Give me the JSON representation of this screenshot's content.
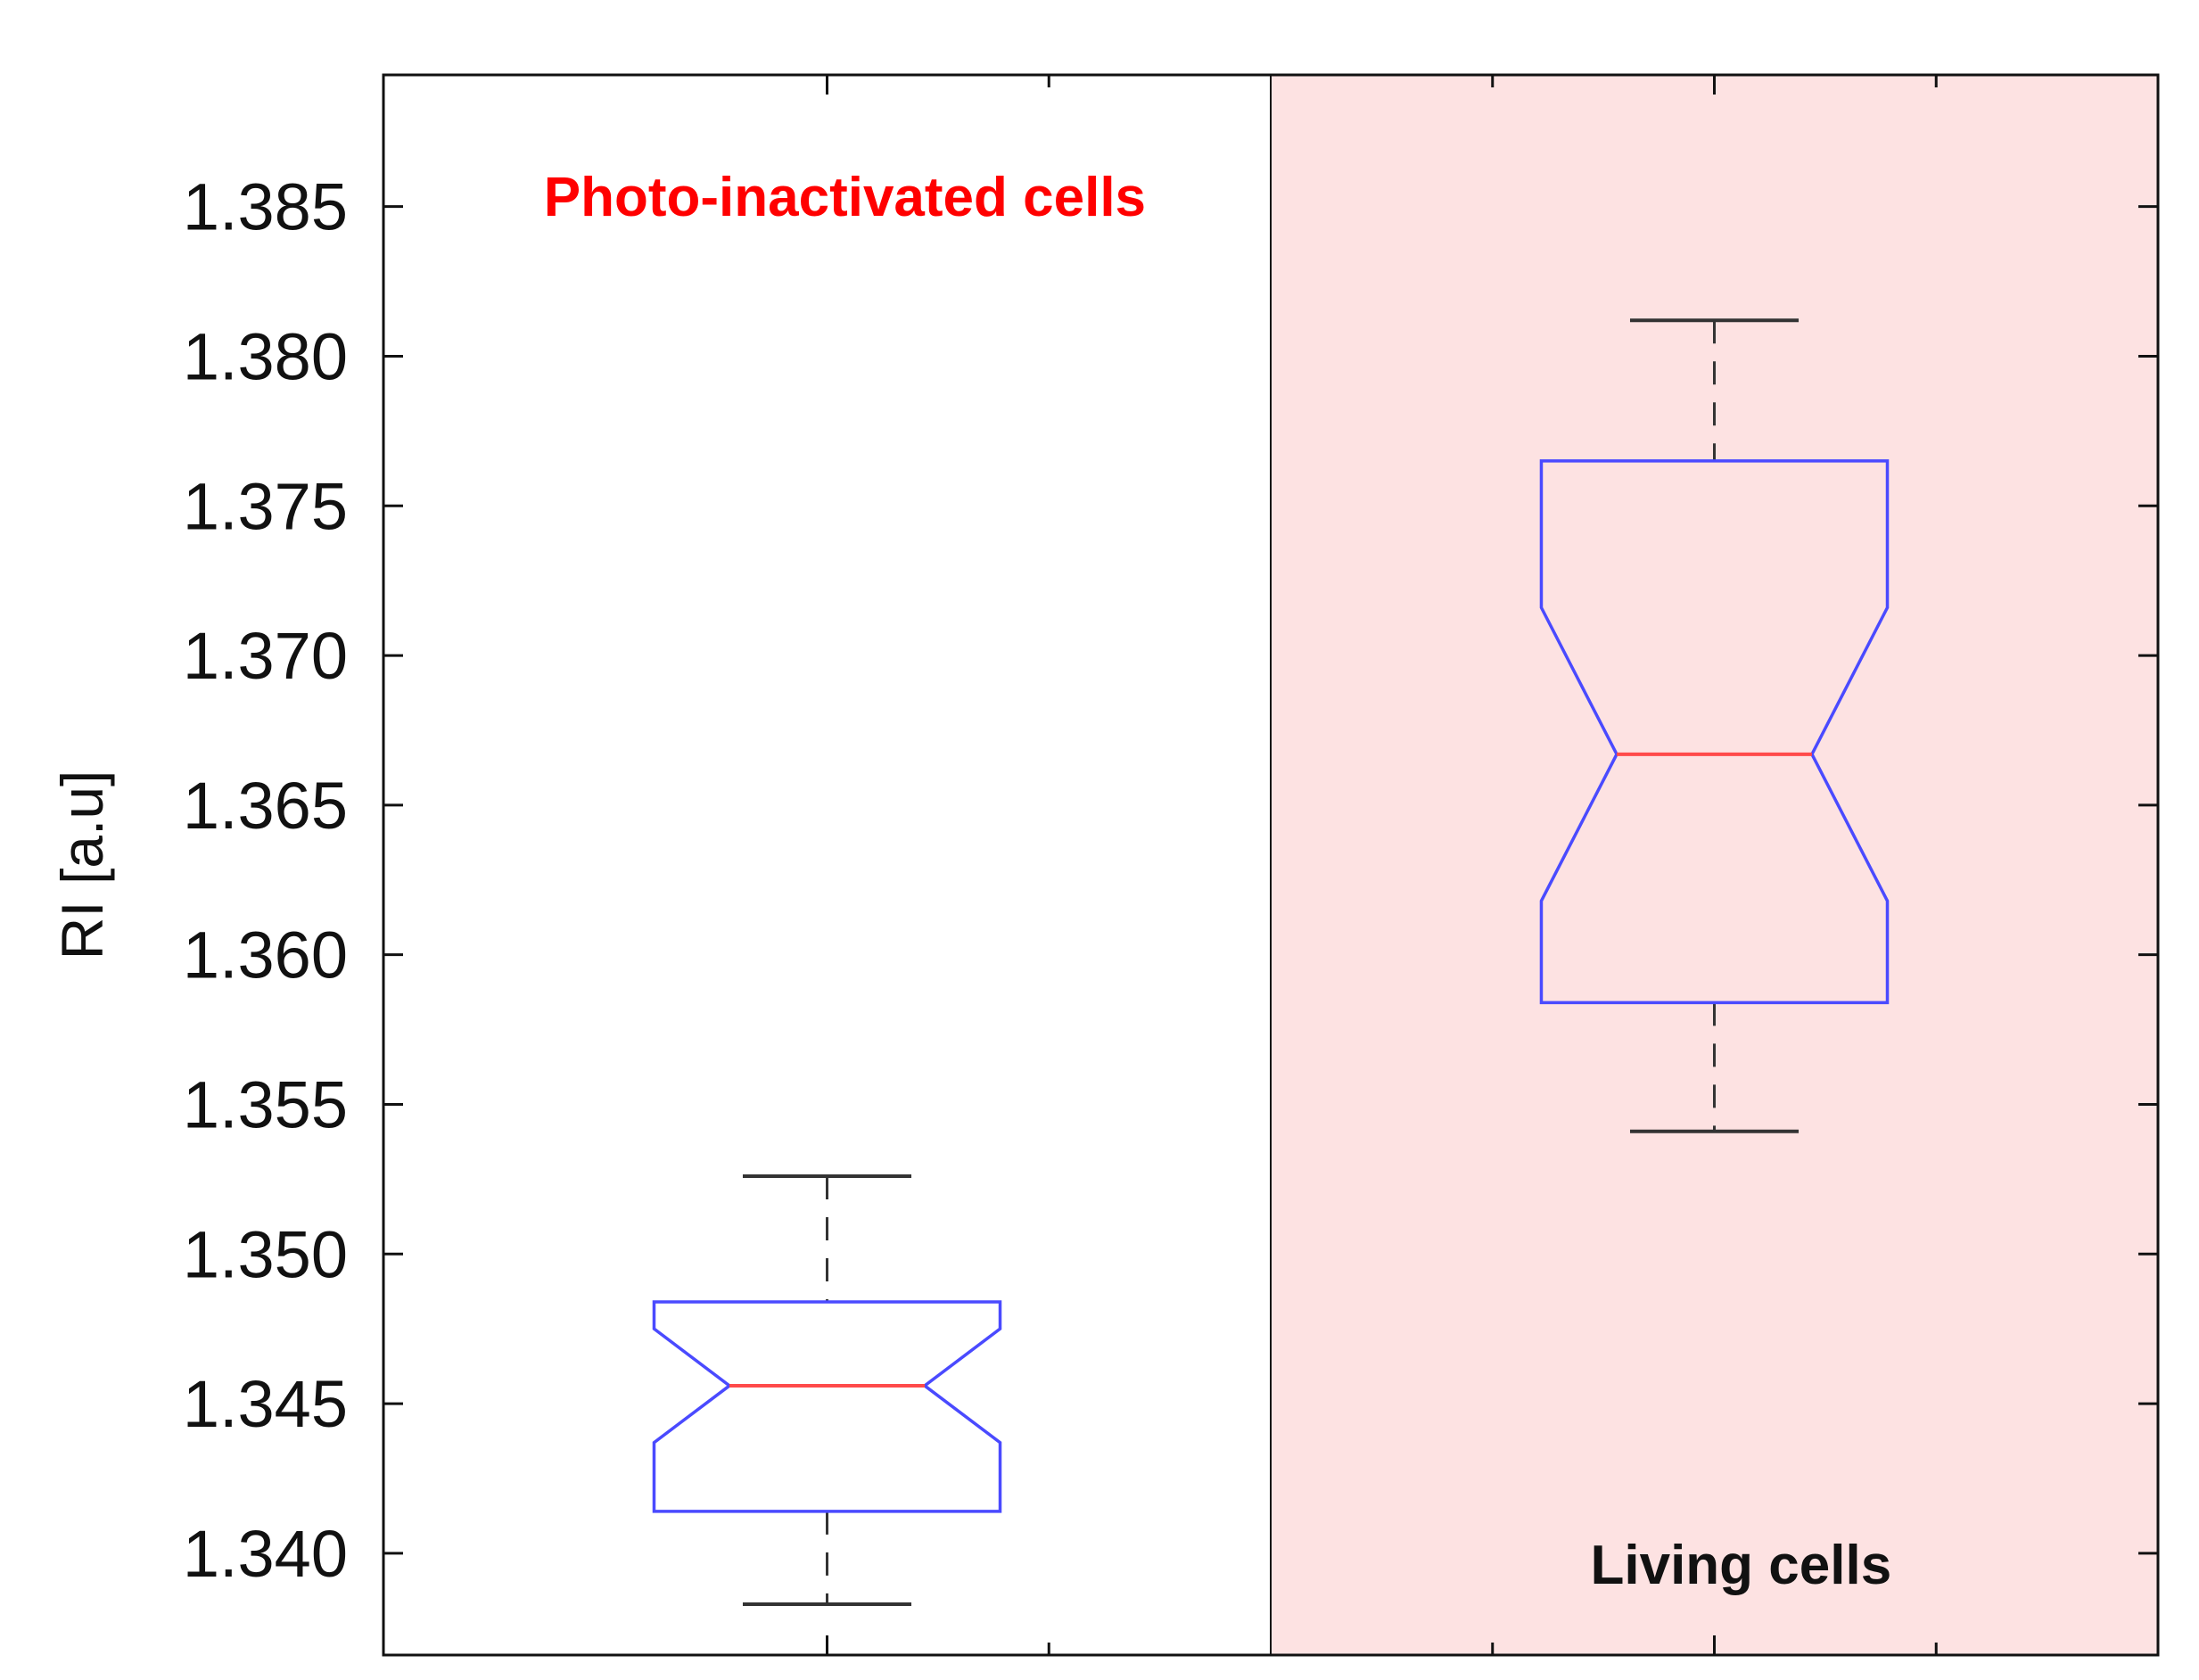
{
  "chart_data": {
    "type": "boxplot",
    "title": "",
    "xlabel": "",
    "ylabel": "RI [a.u]",
    "ylim": [
      1.3366,
      1.3894
    ],
    "yticks": [
      "1.340",
      "1.345",
      "1.350",
      "1.355",
      "1.360",
      "1.365",
      "1.370",
      "1.375",
      "1.380",
      "1.385"
    ],
    "notched": true,
    "grid": false,
    "groups": [
      {
        "annotation": "Photo-inactivated cells",
        "annotation_color": "#ff0000",
        "region_fill": "#ffffff",
        "whisker_low": 1.3383,
        "q1": 1.3414,
        "median": 1.3456,
        "q3": 1.3484,
        "whisker_high": 1.3526,
        "notch_low": 1.3437,
        "notch_high": 1.3475
      },
      {
        "annotation": "Living cells",
        "annotation_color": "#111111",
        "region_fill": "#fde2e2",
        "whisker_low": 1.3541,
        "q1": 1.3584,
        "median": 1.3667,
        "q3": 1.3765,
        "whisker_high": 1.3812,
        "notch_low": 1.3618,
        "notch_high": 1.3716
      }
    ],
    "colors": {
      "box": "#4a4aff",
      "median": "#ff4a4a",
      "whisker": "#333333",
      "frame": "#111111"
    }
  }
}
